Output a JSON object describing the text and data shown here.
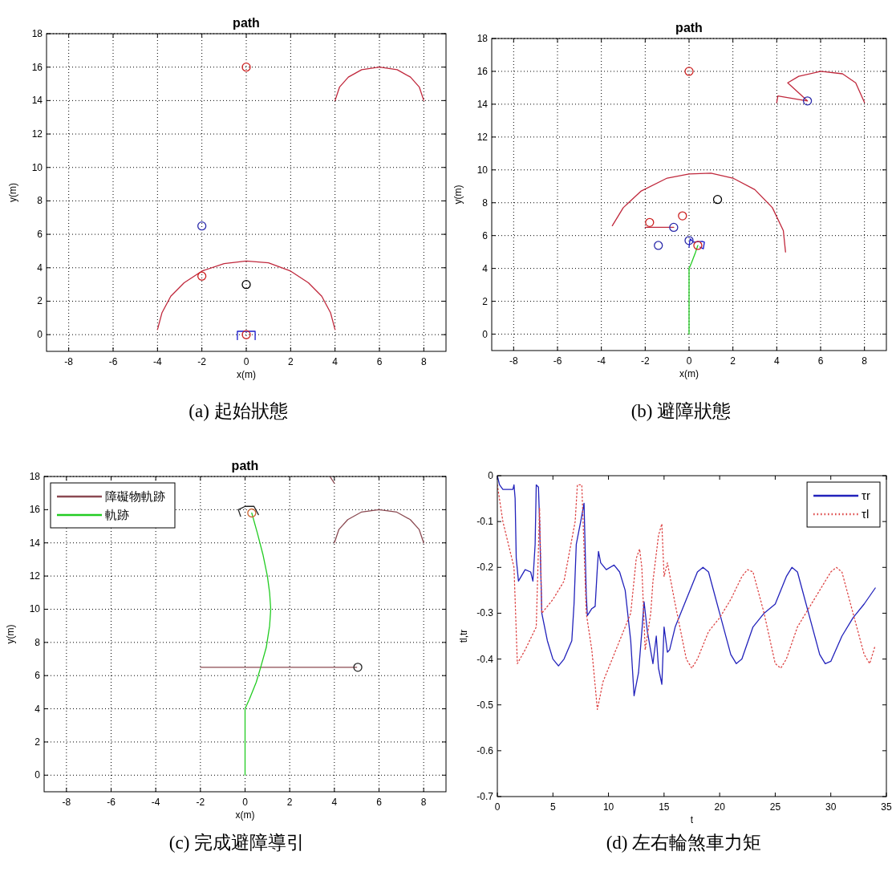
{
  "chart_data": [
    {
      "type": "line",
      "title": "path",
      "xlabel": "x(m)",
      "ylabel": "y(m)",
      "xlim": [
        -9,
        9
      ],
      "ylim": [
        -1,
        18
      ],
      "xticks": [
        -8,
        -6,
        -4,
        -2,
        0,
        2,
        4,
        6,
        8
      ],
      "yticks": [
        0,
        2,
        4,
        6,
        8,
        10,
        12,
        14,
        16,
        18
      ],
      "grid": true,
      "annotations": [
        "(a) 起始狀態"
      ],
      "series": [
        {
          "type": "line",
          "color": "#c0283c",
          "x": [
            -4,
            -3.8,
            -3.4,
            -2.8,
            -2,
            -1,
            0,
            1,
            2,
            2.8,
            3.4,
            3.8,
            4
          ],
          "values": [
            0.3,
            1.3,
            2.3,
            3.1,
            3.8,
            4.25,
            4.4,
            4.3,
            3.8,
            3.1,
            2.3,
            1.3,
            0.3
          ]
        },
        {
          "type": "line",
          "color": "#c0283c",
          "x": [
            4,
            4.2,
            4.6,
            5.2,
            6,
            6.8,
            7.4,
            7.8,
            8
          ],
          "values": [
            14,
            14.8,
            15.4,
            15.85,
            16,
            15.85,
            15.4,
            14.8,
            14
          ]
        },
        {
          "type": "line",
          "color": "#1a1acc",
          "x": [
            -0.4,
            -0.4,
            0.4,
            0.4
          ],
          "values": [
            -0.3,
            0.2,
            0.2,
            -0.3
          ]
        },
        {
          "type": "scatter",
          "marker": "circle",
          "color": "#cc2020",
          "x": [
            0,
            -2,
            0
          ],
          "values": [
            16,
            3.5,
            0
          ]
        },
        {
          "type": "scatter",
          "marker": "circle",
          "color": "#000000",
          "x": [
            0
          ],
          "values": [
            3
          ]
        },
        {
          "type": "scatter",
          "marker": "circle",
          "color": "#2a2aaa",
          "x": [
            -2
          ],
          "values": [
            6.5
          ]
        }
      ]
    },
    {
      "type": "line",
      "title": "path",
      "xlabel": "x(m)",
      "ylabel": "y(m)",
      "xlim": [
        -9,
        9
      ],
      "ylim": [
        -1,
        18
      ],
      "xticks": [
        -8,
        -6,
        -4,
        -2,
        0,
        2,
        4,
        6,
        8
      ],
      "yticks": [
        0,
        2,
        4,
        6,
        8,
        10,
        12,
        14,
        16,
        18
      ],
      "grid": true,
      "annotations": [
        "(b) 避障狀態"
      ],
      "series": [
        {
          "type": "line",
          "color": "#c0283c",
          "x": [
            -3.5,
            -3,
            -2.2,
            -1,
            0,
            1,
            2,
            3,
            3.8,
            4.3,
            4.4
          ],
          "values": [
            6.6,
            7.7,
            8.7,
            9.5,
            9.75,
            9.8,
            9.5,
            8.8,
            7.7,
            6.3,
            5
          ]
        },
        {
          "type": "line",
          "color": "#c0283c",
          "x": [
            4,
            4.05,
            5.4,
            4.5,
            5,
            6,
            7,
            7.6,
            8
          ],
          "values": [
            14.1,
            14.5,
            14.2,
            15.3,
            15.7,
            16,
            15.85,
            15.3,
            14.1
          ]
        },
        {
          "type": "line",
          "color": "#c0283c",
          "x": [
            -2,
            -0.7
          ],
          "values": [
            6.5,
            6.5
          ]
        },
        {
          "type": "line",
          "color": "#22cc22",
          "x": [
            0,
            0,
            0.1,
            0.3,
            0.4
          ],
          "values": [
            0,
            4,
            4.3,
            5,
            5.4
          ]
        },
        {
          "type": "line",
          "color": "#1a1acc",
          "x": [
            0,
            0.05,
            0.2,
            0.6,
            0.7,
            0.65,
            0.5
          ],
          "values": [
            5.3,
            5.8,
            5.6,
            5.65,
            5.6,
            5.2,
            5.3
          ]
        },
        {
          "type": "scatter",
          "marker": "circle",
          "color": "#cc2020",
          "x": [
            0,
            -1.8,
            -0.3,
            0.4
          ],
          "values": [
            16,
            6.8,
            7.2,
            5.4
          ]
        },
        {
          "type": "scatter",
          "marker": "circle",
          "color": "#000000",
          "x": [
            1.3
          ],
          "values": [
            8.2
          ]
        },
        {
          "type": "scatter",
          "marker": "circle",
          "color": "#2a2aaa",
          "x": [
            -1.4,
            0,
            5.4,
            -0.7
          ],
          "values": [
            5.4,
            5.7,
            14.2,
            6.5
          ]
        }
      ]
    },
    {
      "type": "line",
      "title": "path",
      "xlabel": "x(m)",
      "ylabel": "y(m)",
      "xlim": [
        -9,
        9
      ],
      "ylim": [
        -1,
        18
      ],
      "xticks": [
        -8,
        -6,
        -4,
        -2,
        0,
        2,
        4,
        6,
        8
      ],
      "yticks": [
        0,
        2,
        4,
        6,
        8,
        10,
        12,
        14,
        16,
        18
      ],
      "grid": true,
      "legend": "top left",
      "annotations": [
        "(c) 完成避障導引"
      ],
      "series": [
        {
          "type": "line",
          "name": "障礙物軌跡",
          "color": "#8b4a52",
          "x": [
            -2,
            5
          ],
          "values": [
            6.5,
            6.5
          ]
        },
        {
          "type": "line",
          "name": "軌跡",
          "color": "#22cc22",
          "x": [
            0,
            0,
            0.2,
            0.5,
            0.7,
            0.95,
            1.1,
            1.15,
            1.1,
            1,
            0.8,
            0.55,
            0.3
          ],
          "values": [
            0,
            4,
            4.6,
            5.6,
            6.5,
            7.7,
            9,
            10,
            11,
            12,
            13.3,
            14.6,
            15.8
          ]
        },
        {
          "type": "line",
          "color": "#8b4a52",
          "x": [
            4,
            4.2,
            4.6,
            5.2,
            6,
            6.8,
            7.4,
            7.8,
            8
          ],
          "values": [
            14,
            14.8,
            15.4,
            15.85,
            16,
            15.85,
            15.4,
            14.8,
            14
          ]
        },
        {
          "type": "line",
          "color": "#8b4a52",
          "x": [
            3.8,
            4
          ],
          "values": [
            18,
            17.6
          ]
        },
        {
          "type": "line",
          "color": "#222222",
          "x": [
            -0.2,
            -0.3,
            0,
            0.4,
            0.6
          ],
          "values": [
            15.6,
            16,
            16.2,
            16.2,
            15.7
          ]
        },
        {
          "type": "scatter",
          "marker": "circle",
          "color": "#222222",
          "x": [
            5.05
          ],
          "values": [
            6.5
          ]
        },
        {
          "type": "scatter",
          "marker": "circle",
          "color": "#cc6633",
          "x": [
            0.3
          ],
          "values": [
            15.8
          ]
        }
      ]
    },
    {
      "type": "line",
      "xlabel": "t",
      "ylabel": "tl,tr",
      "xlim": [
        0,
        35
      ],
      "ylim": [
        -0.7,
        0
      ],
      "xticks": [
        0,
        5,
        10,
        15,
        20,
        25,
        30,
        35
      ],
      "yticks": [
        -0.7,
        -0.6,
        -0.5,
        -0.4,
        -0.3,
        -0.2,
        -0.1,
        0
      ],
      "legend": "top right",
      "annotations": [
        "(d) 左右輪煞車力矩"
      ],
      "series": [
        {
          "name": "τr",
          "color": "#2222bb",
          "line_style": "solid",
          "x": [
            0,
            0.2,
            0.5,
            1.4,
            1.5,
            1.6,
            1.7,
            1.9,
            2.5,
            3,
            3.2,
            3.4,
            3.5,
            3.7,
            3.8,
            4,
            4.5,
            5,
            5.5,
            6,
            6.7,
            6.9,
            7.1,
            7.5,
            7.8,
            8,
            8.1,
            8.5,
            8.8,
            9,
            9.1,
            9.3,
            9.8,
            10.5,
            11,
            11.5,
            12,
            12.3,
            12.7,
            13,
            13.2,
            13.5,
            14,
            14.3,
            14.5,
            14.8,
            15,
            15.3,
            15.5,
            16,
            17,
            18,
            18.5,
            19,
            20,
            21,
            21.5,
            22,
            23,
            24,
            25,
            26,
            26.5,
            27,
            28,
            29,
            29.5,
            30,
            31,
            32,
            33,
            34
          ],
          "values": [
            0,
            -0.02,
            -0.03,
            -0.03,
            -0.02,
            -0.05,
            -0.18,
            -0.23,
            -0.205,
            -0.21,
            -0.23,
            -0.15,
            -0.02,
            -0.025,
            -0.1,
            -0.3,
            -0.36,
            -0.4,
            -0.415,
            -0.4,
            -0.36,
            -0.28,
            -0.15,
            -0.1,
            -0.06,
            -0.26,
            -0.305,
            -0.29,
            -0.285,
            -0.2,
            -0.165,
            -0.19,
            -0.205,
            -0.195,
            -0.21,
            -0.25,
            -0.36,
            -0.48,
            -0.43,
            -0.34,
            -0.275,
            -0.34,
            -0.41,
            -0.35,
            -0.42,
            -0.455,
            -0.33,
            -0.385,
            -0.38,
            -0.33,
            -0.27,
            -0.21,
            -0.2,
            -0.21,
            -0.3,
            -0.39,
            -0.41,
            -0.4,
            -0.33,
            -0.3,
            -0.28,
            -0.22,
            -0.2,
            -0.21,
            -0.3,
            -0.39,
            -0.41,
            -0.405,
            -0.35,
            -0.31,
            -0.28,
            -0.245
          ]
        },
        {
          "name": "τl",
          "color": "#dd4444",
          "line_style": "dotted",
          "x": [
            0,
            0.5,
            1.5,
            1.8,
            2.5,
            3.5,
            3.8,
            4,
            5,
            6,
            7,
            7.2,
            7.6,
            8,
            8.5,
            9,
            9.5,
            11,
            12,
            12.5,
            12.8,
            13,
            13.3,
            13.8,
            14,
            14.5,
            14.8,
            15,
            15.3,
            16,
            17,
            17.5,
            18,
            19,
            20,
            21,
            22,
            22.5,
            23,
            24,
            25,
            25.5,
            26,
            27,
            28,
            29,
            30,
            30.5,
            31,
            32,
            33,
            33.5,
            34
          ],
          "values": [
            -0.02,
            -0.1,
            -0.2,
            -0.41,
            -0.38,
            -0.33,
            -0.07,
            -0.3,
            -0.27,
            -0.23,
            -0.1,
            -0.02,
            -0.02,
            -0.3,
            -0.38,
            -0.51,
            -0.45,
            -0.36,
            -0.3,
            -0.18,
            -0.16,
            -0.2,
            -0.38,
            -0.3,
            -0.23,
            -0.13,
            -0.105,
            -0.22,
            -0.19,
            -0.28,
            -0.4,
            -0.42,
            -0.4,
            -0.34,
            -0.31,
            -0.27,
            -0.22,
            -0.205,
            -0.21,
            -0.3,
            -0.41,
            -0.42,
            -0.4,
            -0.33,
            -0.29,
            -0.25,
            -0.21,
            -0.2,
            -0.21,
            -0.3,
            -0.39,
            -0.41,
            -0.37
          ]
        }
      ]
    }
  ]
}
